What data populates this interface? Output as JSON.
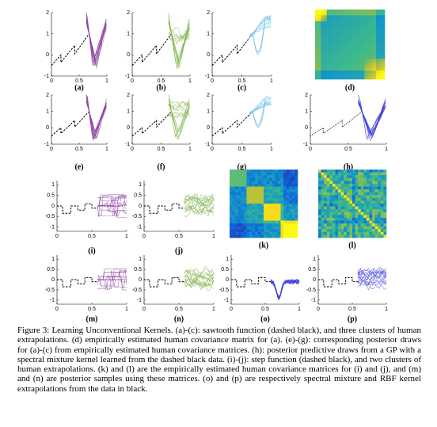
{
  "panels": [
    {
      "label": "(a)",
      "kind": "plot",
      "base": "sawtooth",
      "style": "v",
      "color": "#8a3d9e",
      "xlim": [
        0,
        1
      ],
      "ylim": [
        -1,
        2
      ],
      "xticks": [
        0,
        0.5,
        1
      ],
      "yticks": [
        2,
        1,
        0,
        -1
      ]
    },
    {
      "label": "(b)",
      "kind": "plot",
      "base": "sawtooth",
      "style": "mixed",
      "color": "#7db24a",
      "xlim": [
        0,
        1
      ],
      "ylim": [
        -1,
        2
      ],
      "xticks": [
        0,
        0.5,
        1
      ],
      "yticks": [
        2,
        1,
        0,
        -1
      ]
    },
    {
      "label": "(c)",
      "kind": "plot",
      "base": "sawtooth",
      "style": "rise",
      "color": "#7cc6ea",
      "xlim": [
        0,
        1
      ],
      "ylim": [
        -1,
        2
      ],
      "xticks": [
        0,
        0.5,
        1
      ],
      "yticks": [
        2,
        1,
        0,
        -1
      ]
    },
    {
      "label": "(d)",
      "kind": "heatmap",
      "pattern": "corner"
    },
    {
      "label": "(e)",
      "kind": "plot",
      "base": "sawtooth",
      "style": "v",
      "color": "#8a3d9e",
      "xlim": [
        0,
        1
      ],
      "ylim": [
        -1,
        2
      ],
      "xticks": [
        0,
        0.5,
        1
      ],
      "yticks": [
        2,
        1,
        0,
        -1
      ]
    },
    {
      "label": "(f)",
      "kind": "plot",
      "base": "sawtooth",
      "style": "mixed",
      "color": "#7db24a",
      "xlim": [
        0,
        1
      ],
      "ylim": [
        -1,
        2
      ],
      "xticks": [
        0,
        0.5,
        1
      ],
      "yticks": [
        2,
        1,
        0,
        -1
      ]
    },
    {
      "label": "(g)",
      "kind": "plot",
      "base": "sawtooth",
      "style": "rise",
      "color": "#7cc6ea",
      "xlim": [
        0,
        1
      ],
      "ylim": [
        -1,
        2
      ],
      "xticks": [
        0,
        0.5,
        1
      ],
      "yticks": [
        2,
        1,
        0,
        -1
      ]
    },
    {
      "label": "(h)",
      "kind": "plot",
      "base": "sawtooth",
      "style": "v",
      "color": "#3a3ad6",
      "dotted": true,
      "xlim": [
        0,
        1
      ],
      "ylim": [
        -1,
        2
      ],
      "xticks": [
        0,
        0.5,
        1
      ],
      "yticks": [
        2,
        1,
        0,
        -1
      ]
    },
    {
      "label": "(i)",
      "kind": "plot",
      "base": "step",
      "style": "steps",
      "color": "#8a3d9e",
      "xlim": [
        0,
        1
      ],
      "ylim": [
        -1.2,
        1.2
      ],
      "xticks": [
        0,
        0.5,
        1
      ],
      "yticks": [
        1,
        0.5,
        0,
        -0.5,
        -1
      ]
    },
    {
      "label": "(j)",
      "kind": "plot",
      "base": "step",
      "style": "noise",
      "color": "#7db24a",
      "xlim": [
        0,
        1
      ],
      "ylim": [
        -1.2,
        1.2
      ],
      "xticks": [
        0,
        0.5,
        1
      ],
      "yticks": [
        1,
        0.5,
        0,
        -0.5,
        -1
      ]
    },
    {
      "label": "(k)",
      "kind": "heatmap",
      "pattern": "blocks"
    },
    {
      "label": "(l)",
      "kind": "heatmap",
      "pattern": "noise"
    },
    {
      "label": "(m)",
      "kind": "plot",
      "base": "step",
      "style": "steps",
      "color": "#8a3d9e",
      "xlim": [
        0,
        1
      ],
      "ylim": [
        -1.2,
        1.2
      ],
      "xticks": [
        0,
        0.5,
        1
      ],
      "yticks": [
        1,
        0.5,
        0,
        -0.5,
        -1
      ]
    },
    {
      "label": "(n)",
      "kind": "plot",
      "base": "step",
      "style": "noise",
      "color": "#7db24a",
      "xlim": [
        0,
        1
      ],
      "ylim": [
        -1.2,
        1.2
      ],
      "xticks": [
        0,
        0.5,
        1
      ],
      "yticks": [
        1,
        0.5,
        0,
        -0.5,
        -1
      ]
    },
    {
      "label": "(o)",
      "kind": "plot",
      "base": "step",
      "style": "dip",
      "color": "#3a3ad6",
      "xlim": [
        0,
        1
      ],
      "ylim": [
        -1.2,
        1.2
      ],
      "xticks": [
        0,
        0.5,
        1
      ],
      "yticks": [
        1,
        0.5,
        0,
        -0.5,
        -1
      ]
    },
    {
      "label": "(p)",
      "kind": "plot",
      "base": "step",
      "style": "noise",
      "color": "#4a4ad8",
      "xlim": [
        0,
        1
      ],
      "ylim": [
        -1.2,
        1.2
      ],
      "xticks": [
        0,
        0.5,
        1
      ],
      "yticks": [
        1,
        0.5,
        0,
        -0.5,
        -1
      ]
    }
  ],
  "sawtooth": {
    "x": [
      0,
      0.17,
      0.17,
      0.42,
      0.42,
      0.68
    ],
    "y": [
      -0.5,
      0,
      -0.35,
      0.45,
      0.05,
      1
    ]
  },
  "step": {
    "x": [
      0,
      0.08,
      0.08,
      0.2,
      0.2,
      0.3,
      0.3,
      0.4,
      0.4,
      0.5,
      0.5,
      0.58
    ],
    "y": [
      0,
      0,
      -0.35,
      -0.35,
      0,
      0,
      -0.2,
      -0.2,
      0.1,
      0.1,
      -0.1,
      -0.1
    ]
  },
  "caption": "Figure 3: Learning Unconventional Kernels. (a)-(c): sawtooth function (dashed black), and three clusters of human extrapolations. (d) empirically estimated human covariance matrix for (a). (e)-(g): corresponding posterior draws for (a)-(c) from empirically estimated human covariance matrices. (h): posterior predictive draws from a GP with a spectral mixture kernel learned from the dashed black data. (i)-(j): step function (dashed black), and two clusters of human extrapolations. (k) and (l) are the empirically estimated human covariance matrices for (i) and (j), and (m) and (n) are posterior samples using these matrices. (o) and (p) are respectively spectral mixture and RBF kernel extrapolations from the data in black."
}
